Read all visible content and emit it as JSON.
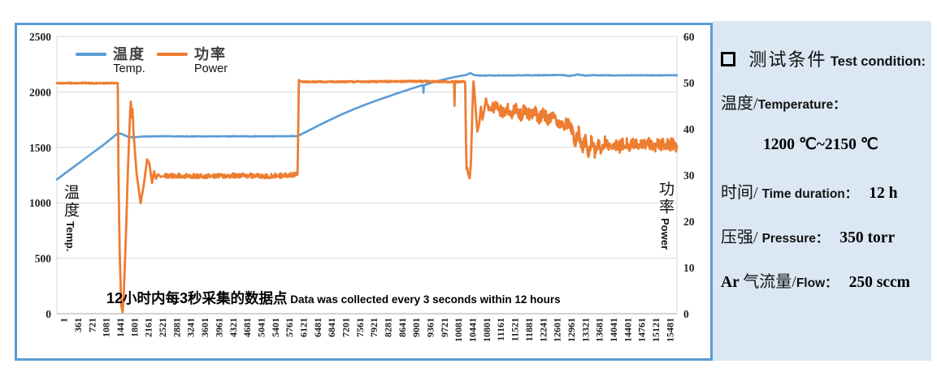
{
  "colors": {
    "temp_line": "#5B9BD5",
    "power_line": "#ED7D31",
    "chart_border": "#5B9BD5",
    "panel_bg": "#DBE7F3",
    "gridline": "#D9D9D9",
    "axis_line": "#9b9b9b",
    "tick_text": "#1f1f1f"
  },
  "chart_data": {
    "type": "line",
    "x_range": [
      0,
      15840
    ],
    "x_ticks": [
      "1",
      "361",
      "721",
      "1081",
      "1441",
      "1801",
      "2161",
      "2521",
      "2881",
      "3241",
      "3601",
      "3961",
      "4321",
      "4681",
      "5041",
      "5401",
      "5761",
      "6121",
      "6481",
      "6841",
      "7201",
      "7561",
      "7921",
      "8281",
      "8641",
      "9001",
      "9361",
      "9721",
      "10081",
      "10441",
      "10801",
      "11161",
      "11521",
      "11881",
      "12241",
      "12601",
      "12961",
      "13321",
      "13681",
      "14041",
      "14401",
      "14761",
      "15121",
      "15481"
    ],
    "left_axis": {
      "label_cn": "温度",
      "label_en": "Temp.",
      "range": [
        0,
        2500
      ],
      "ticks": [
        0,
        500,
        1000,
        1500,
        2000,
        2500
      ]
    },
    "right_axis": {
      "label_cn": "功率",
      "label_en": "Power",
      "range": [
        0,
        60
      ],
      "ticks": [
        0,
        10,
        20,
        30,
        40,
        50,
        60
      ]
    },
    "grid": "horizontal",
    "legend_position": "top-left",
    "series": [
      {
        "name_cn": "温度",
        "name_en": "Temp.",
        "axis": "left",
        "color": "#5B9BD5",
        "width": 2.6,
        "keypoints": [
          [
            0,
            1210
          ],
          [
            300,
            1290
          ],
          [
            600,
            1368
          ],
          [
            900,
            1447
          ],
          [
            1200,
            1525
          ],
          [
            1560,
            1628
          ],
          [
            1650,
            1622
          ],
          [
            1800,
            1598
          ],
          [
            1960,
            1589
          ],
          [
            2150,
            1597
          ],
          [
            2600,
            1600
          ],
          [
            3600,
            1599
          ],
          [
            4600,
            1600
          ],
          [
            5600,
            1600
          ],
          [
            6150,
            1602
          ],
          [
            6400,
            1646
          ],
          [
            6700,
            1700
          ],
          [
            7000,
            1752
          ],
          [
            7300,
            1801
          ],
          [
            7600,
            1846
          ],
          [
            7900,
            1888
          ],
          [
            8200,
            1927
          ],
          [
            8500,
            1963
          ],
          [
            8800,
            2000
          ],
          [
            9100,
            2034
          ],
          [
            9330,
            2060
          ],
          [
            9354,
            2058
          ],
          [
            9364,
            1992
          ],
          [
            9378,
            2060
          ],
          [
            9600,
            2086
          ],
          [
            9900,
            2114
          ],
          [
            10200,
            2137
          ],
          [
            10441,
            2152
          ],
          [
            10560,
            2170
          ],
          [
            10670,
            2151
          ],
          [
            10900,
            2147
          ],
          [
            11500,
            2149
          ],
          [
            12200,
            2150
          ],
          [
            12900,
            2153
          ],
          [
            13100,
            2144
          ],
          [
            13300,
            2158
          ],
          [
            13500,
            2146
          ],
          [
            13700,
            2151
          ],
          [
            14200,
            2149
          ],
          [
            14800,
            2150
          ],
          [
            15400,
            2150
          ],
          [
            15840,
            2150
          ]
        ],
        "noise": [
          {
            "x0": 2200,
            "x1": 6050,
            "amp": 2.5
          },
          {
            "x0": 10750,
            "x1": 15840,
            "amp": 2.5
          }
        ]
      },
      {
        "name_cn": "功率",
        "name_en": "Power",
        "axis": "right",
        "color": "#ED7D31",
        "width": 2.8,
        "keypoints": [
          [
            0,
            49.9
          ],
          [
            900,
            49.9
          ],
          [
            1555,
            49.9
          ],
          [
            1574,
            30
          ],
          [
            1602,
            14
          ],
          [
            1642,
            2
          ],
          [
            1676,
            0.3
          ],
          [
            1702,
            3
          ],
          [
            1752,
            14
          ],
          [
            1822,
            33
          ],
          [
            1872,
            44
          ],
          [
            1890,
            45.9
          ],
          [
            1912,
            42.5
          ],
          [
            1932,
            44.3
          ],
          [
            1955,
            39.5
          ],
          [
            2035,
            30.5
          ],
          [
            2138,
            23.9
          ],
          [
            2225,
            28.2
          ],
          [
            2305,
            33.4
          ],
          [
            2360,
            32.6
          ],
          [
            2432,
            28.3
          ],
          [
            2482,
            30.8
          ],
          [
            2532,
            29.2
          ],
          [
            2585,
            30.2
          ],
          [
            2655,
            29.6
          ],
          [
            2760,
            29.9
          ],
          [
            3600,
            29.8
          ],
          [
            4600,
            29.9
          ],
          [
            5600,
            29.8
          ],
          [
            6148,
            30.1
          ],
          [
            6165,
            40
          ],
          [
            6182,
            50.6
          ],
          [
            6235,
            50.2
          ],
          [
            7500,
            50.2
          ],
          [
            9000,
            50.3
          ],
          [
            10118,
            50.2
          ],
          [
            10146,
            50.2
          ],
          [
            10157,
            44.9
          ],
          [
            10170,
            50.2
          ],
          [
            10430,
            50.2
          ],
          [
            10450,
            37
          ],
          [
            10465,
            31.3
          ],
          [
            10482,
            31.6
          ],
          [
            10500,
            30.5
          ],
          [
            10545,
            29.3
          ],
          [
            10580,
            33
          ],
          [
            10612,
            44
          ],
          [
            10642,
            50.3
          ],
          [
            10660,
            48.8
          ],
          [
            10702,
            43.8
          ],
          [
            10742,
            39.4
          ],
          [
            10792,
            41.2
          ],
          [
            10832,
            44.8
          ],
          [
            10872,
            42
          ],
          [
            10922,
            44.2
          ],
          [
            10962,
            46.6
          ],
          [
            11002,
            44.8
          ],
          [
            11122,
            44.2
          ],
          [
            11242,
            45.2
          ],
          [
            11362,
            43.4
          ],
          [
            11482,
            44.6
          ],
          [
            11602,
            43.2
          ],
          [
            11722,
            44.6
          ],
          [
            11842,
            43
          ],
          [
            11962,
            44.2
          ],
          [
            12082,
            42.8
          ],
          [
            12202,
            43.8
          ],
          [
            12322,
            42.4
          ],
          [
            12442,
            43.4
          ],
          [
            12562,
            41.9
          ],
          [
            12682,
            42.8
          ],
          [
            12802,
            41.3
          ],
          [
            12922,
            40.6
          ],
          [
            13042,
            41.5
          ],
          [
            13142,
            39.8
          ],
          [
            13242,
            37.3
          ],
          [
            13332,
            39.2
          ],
          [
            13422,
            35.3
          ],
          [
            13502,
            38.2
          ],
          [
            13582,
            34.6
          ],
          [
            13662,
            37.6
          ],
          [
            13742,
            34.9
          ],
          [
            13822,
            37.1
          ],
          [
            13902,
            35.8
          ],
          [
            14002,
            37.3
          ],
          [
            14122,
            35.9
          ],
          [
            14242,
            37
          ],
          [
            14362,
            36.1
          ],
          [
            14502,
            37.1
          ],
          [
            14652,
            36.2
          ],
          [
            14802,
            37
          ],
          [
            14952,
            36.3
          ],
          [
            15102,
            36.9
          ],
          [
            15252,
            36.2
          ],
          [
            15402,
            36.8
          ],
          [
            15552,
            36.3
          ],
          [
            15702,
            36.7
          ],
          [
            15840,
            36.4
          ]
        ],
        "noise": [
          {
            "x0": 0,
            "x1": 1550,
            "amp": 0.12
          },
          {
            "x0": 2760,
            "x1": 6140,
            "amp": 0.5
          },
          {
            "x0": 6240,
            "x1": 10420,
            "amp": 0.15
          },
          {
            "x0": 11002,
            "x1": 15840,
            "amp": 1.35
          }
        ]
      }
    ],
    "annotation": {
      "text": "12小时内每3秒采集的数据点 Data was collected every 3 seconds within 12 hours",
      "segments": [
        {
          "t": "12",
          "s": "num"
        },
        {
          "t": "小时内每",
          "s": "cn"
        },
        {
          "t": "3",
          "s": "num"
        },
        {
          "t": "秒采集的数据点",
          "s": "cn"
        },
        {
          "t": " Data was collected every 3 seconds within 12 hours",
          "s": "en"
        }
      ]
    }
  },
  "panel": {
    "title": {
      "bullet": "□",
      "cn": "测试条件",
      "en": "Test condition:"
    },
    "lines": [
      {
        "segments": [
          {
            "t": "温度/",
            "s": "cn"
          },
          {
            "t": "Temperature：",
            "s": "en"
          }
        ]
      },
      {
        "segments": [
          {
            "t": "1200 ℃~2150 ℃",
            "s": "val"
          }
        ]
      },
      {
        "segments": [
          {
            "t": "时间/ ",
            "s": "cn"
          },
          {
            "t": "Time duration：",
            "s": "en"
          },
          {
            "t": "12 h",
            "s": "val-sp"
          }
        ]
      },
      {
        "segments": [
          {
            "t": "压强/ ",
            "s": "cn"
          },
          {
            "t": "Pressure：",
            "s": "en"
          },
          {
            "t": "350 torr",
            "s": "val-sp"
          }
        ]
      },
      {
        "segments": [
          {
            "t": "Ar ",
            "s": "val"
          },
          {
            "t": "气流量/",
            "s": "cn"
          },
          {
            "t": "Flow：",
            "s": "en"
          },
          {
            "t": "250 sccm",
            "s": "val-sp"
          }
        ]
      }
    ]
  }
}
